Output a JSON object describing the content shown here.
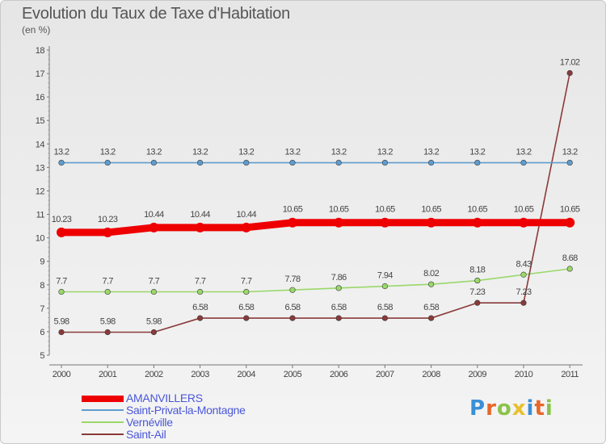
{
  "title": "Evolution du Taux de Taxe d'Habitation",
  "subtitle": "(en %)",
  "logo": {
    "text": "Proxiti",
    "colors": [
      "#3a8fd6",
      "#e8662a",
      "#8bc34a",
      "#e8c02a",
      "#3a8fd6",
      "#e8662a",
      "#8bc34a"
    ]
  },
  "chart_data": {
    "type": "line",
    "title": "Evolution du Taux de Taxe d'Habitation",
    "ylabel": "(en %)",
    "xlabel": "",
    "x": [
      "2000",
      "2001",
      "2002",
      "2003",
      "2004",
      "2005",
      "2006",
      "2007",
      "2008",
      "2009",
      "2010",
      "2011"
    ],
    "ylim": [
      5,
      18
    ],
    "yticks": [
      "5",
      "6",
      "7",
      "8",
      "9",
      "10",
      "11",
      "12",
      "13",
      "14",
      "15",
      "16",
      "17",
      "18"
    ],
    "grid": false,
    "legend_position": "bottom-left",
    "series": [
      {
        "name": "AMANVILLERS",
        "color": "#ee0000",
        "values": [
          10.23,
          10.23,
          10.44,
          10.44,
          10.44,
          10.65,
          10.65,
          10.65,
          10.65,
          10.65,
          10.65,
          10.65
        ],
        "labels": [
          "10.23",
          "10.23",
          "10.44",
          "10.44",
          "10.44",
          "10.65",
          "10.65",
          "10.65",
          "10.65",
          "10.65",
          "10.65",
          "10.65"
        ]
      },
      {
        "name": "Saint-Privat-la-Montagne",
        "color": "#5e9ccf",
        "values": [
          13.2,
          13.2,
          13.2,
          13.2,
          13.2,
          13.2,
          13.2,
          13.2,
          13.2,
          13.2,
          13.2,
          13.2
        ],
        "labels": [
          "13.2",
          "13.2",
          "13.2",
          "13.2",
          "13.2",
          "13.2",
          "13.2",
          "13.2",
          "13.2",
          "13.2",
          "13.2",
          "13.2"
        ]
      },
      {
        "name": "Vernéville",
        "color": "#9ad86a",
        "values": [
          7.7,
          7.7,
          7.7,
          7.7,
          7.7,
          7.78,
          7.86,
          7.94,
          8.02,
          8.18,
          8.43,
          8.68
        ],
        "labels": [
          "7.7",
          "7.7",
          "7.7",
          "7.7",
          "7.7",
          "7.78",
          "7.86",
          "7.94",
          "8.02",
          "8.18",
          "8.43",
          "8.68"
        ]
      },
      {
        "name": "Saint-Ail",
        "color": "#8a3a3a",
        "values": [
          5.98,
          5.98,
          5.98,
          6.58,
          6.58,
          6.58,
          6.58,
          6.58,
          6.58,
          7.23,
          7.23,
          17.02
        ],
        "labels": [
          "5.98",
          "5.98",
          "5.98",
          "6.58",
          "6.58",
          "6.58",
          "6.58",
          "6.58",
          "6.58",
          "7.23",
          "7.23",
          "17.02"
        ]
      }
    ]
  }
}
